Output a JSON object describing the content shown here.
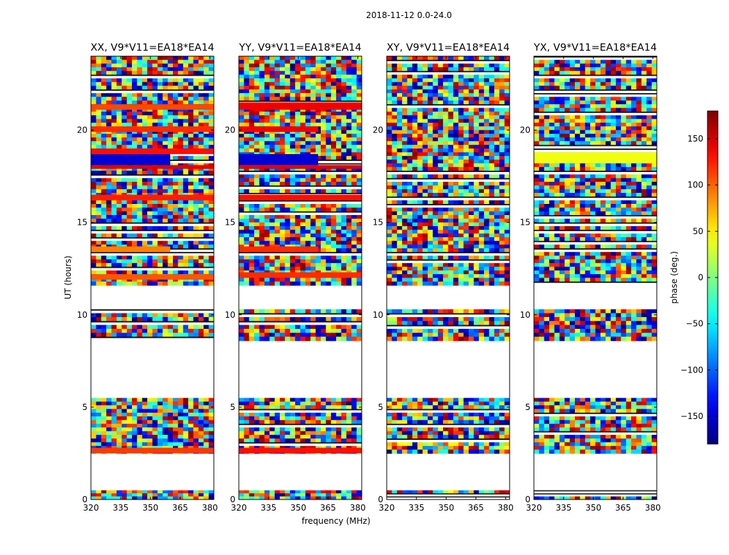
{
  "figure": {
    "suptitle": "2018-11-12 0.0-24.0"
  },
  "chart_data": {
    "type": "heatmap",
    "title": "2018-11-12 0.0-24.0",
    "xlabel": "frequency (MHz)",
    "ylabel": "UT (hours)",
    "xlim": [
      320,
      382
    ],
    "ylim": [
      0,
      24
    ],
    "xticks": [
      320,
      335,
      350,
      365,
      380
    ],
    "yticks": [
      0,
      5,
      10,
      15,
      20
    ],
    "colormap": "jet",
    "colorbar": {
      "label": "phase (deg.)",
      "range": [
        -180,
        180
      ],
      "ticks": [
        150,
        100,
        50,
        0,
        -50,
        -100,
        -150
      ],
      "tick_labels": [
        "150",
        "100",
        "50",
        "0",
        "−50",
        "−100",
        "−150"
      ]
    },
    "data_time_ranges_hours": [
      [
        0.0,
        0.5
      ],
      [
        2.5,
        5.5
      ],
      [
        8.6,
        10.3
      ],
      [
        11.6,
        24.0
      ]
    ],
    "panels": [
      {
        "title": "XX, V9*V11=EA18*EA14",
        "coherent_bands": [
          {
            "ut": [
              2.5,
              2.8
            ],
            "phase": 115,
            "freq": [
              320,
              382
            ]
          },
          {
            "ut": [
              11.9,
              12.2
            ],
            "phase": 105,
            "freq": [
              320,
              382
            ]
          },
          {
            "ut": [
              13.4,
              13.7
            ],
            "phase": 90,
            "freq": [
              320,
              360
            ]
          },
          {
            "ut": [
              16.2,
              16.5
            ],
            "phase": 125,
            "freq": [
              320,
              382
            ]
          },
          {
            "ut": [
              17.9,
              18.1
            ],
            "phase": 145,
            "freq": [
              320,
              382
            ]
          },
          {
            "ut": [
              18.1,
              18.7
            ],
            "phase": -150,
            "freq": [
              320,
              360
            ]
          },
          {
            "ut": [
              18.7,
              19.0
            ],
            "phase": 130,
            "freq": [
              320,
              382
            ]
          },
          {
            "ut": [
              19.9,
              20.2
            ],
            "phase": 120,
            "freq": [
              320,
              382
            ]
          },
          {
            "ut": [
              21.1,
              21.4
            ],
            "phase": 110,
            "freq": [
              320,
              382
            ]
          }
        ]
      },
      {
        "title": "YY, V9*V11=EA18*EA14",
        "coherent_bands": [
          {
            "ut": [
              2.5,
              2.8
            ],
            "phase": 130,
            "freq": [
              320,
              382
            ]
          },
          {
            "ut": [
              12.0,
              12.3
            ],
            "phase": 120,
            "freq": [
              320,
              382
            ]
          },
          {
            "ut": [
              13.4,
              13.7
            ],
            "phase": 120,
            "freq": [
              320,
              360
            ]
          },
          {
            "ut": [
              16.2,
              16.5
            ],
            "phase": 130,
            "freq": [
              320,
              382
            ]
          },
          {
            "ut": [
              17.9,
              18.1
            ],
            "phase": 145,
            "freq": [
              320,
              382
            ]
          },
          {
            "ut": [
              18.1,
              18.7
            ],
            "phase": -150,
            "freq": [
              320,
              360
            ]
          },
          {
            "ut": [
              19.9,
              20.2
            ],
            "phase": 140,
            "freq": [
              320,
              360
            ]
          },
          {
            "ut": [
              21.1,
              21.5
            ],
            "phase": 140,
            "freq": [
              320,
              382
            ]
          }
        ]
      },
      {
        "title": "XY, V9*V11=EA18*EA14",
        "coherent_bands": []
      },
      {
        "title": "YX, V9*V11=EA18*EA14",
        "coherent_bands": [
          {
            "ut": [
              18.2,
              18.8
            ],
            "phase": 40,
            "freq": [
              320,
              382
            ]
          }
        ]
      }
    ]
  }
}
